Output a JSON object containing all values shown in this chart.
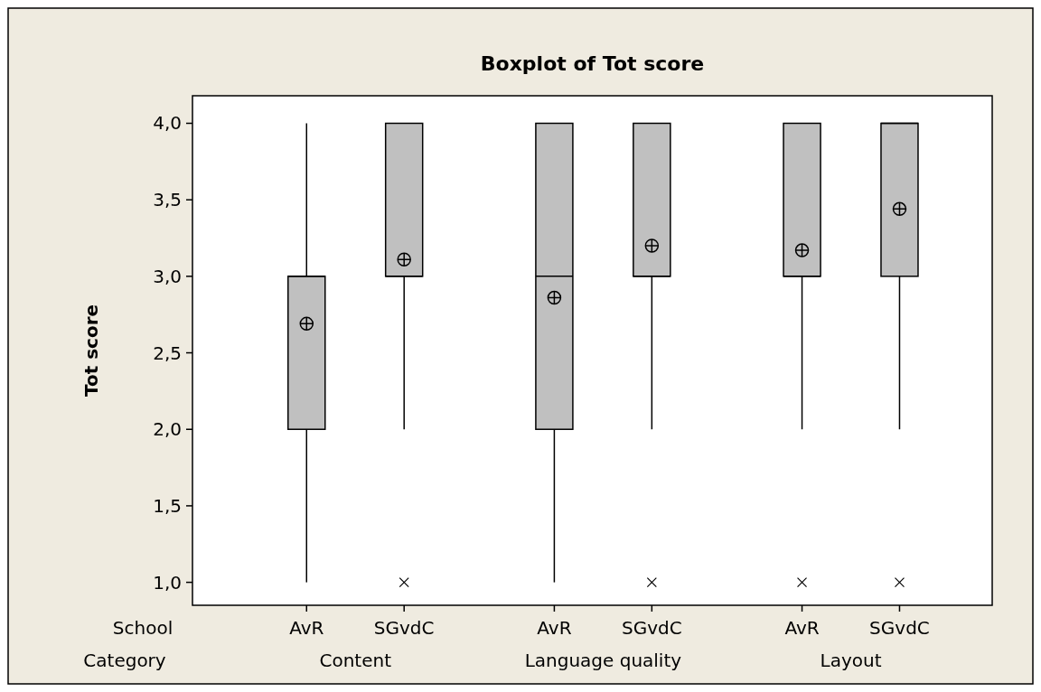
{
  "chart_data": {
    "type": "box",
    "title": "Boxplot of Tot score",
    "ylabel": "Tot score",
    "categories": [
      "AvR",
      "SGvdC",
      "AvR",
      "SGvdC",
      "AvR",
      "SGvdC"
    ],
    "annotations": [
      "School",
      "Category",
      "Content",
      "Language quality",
      "Layout"
    ],
    "boxes": [
      {
        "low": 1,
        "q1": 2,
        "median": 3,
        "q3": 3,
        "high": 4,
        "mean": 2.69
      },
      {
        "low": 2,
        "q1": 3,
        "median": 3,
        "q3": 4,
        "high": 4,
        "mean": 3.11,
        "outliers": [
          1
        ]
      },
      {
        "low": 1,
        "q1": 2,
        "median": 3,
        "q3": 4,
        "high": 4,
        "mean": 2.86
      },
      {
        "low": 2,
        "q1": 3,
        "median": 3,
        "q3": 4,
        "high": 4,
        "mean": 3.2,
        "outliers": [
          1
        ]
      },
      {
        "low": 2,
        "q1": 3,
        "median": 3,
        "q3": 4,
        "high": 4,
        "mean": 3.17,
        "outliers": [
          1
        ]
      },
      {
        "low": 2,
        "q1": 3,
        "median": 4,
        "q3": 4,
        "high": 4,
        "mean": 3.44,
        "outliers": [
          1
        ]
      }
    ],
    "color": "#c0c0c0",
    "ylim": [
      0.85,
      4.18
    ],
    "yticks": [
      {
        "value": 1,
        "label": "1,0"
      },
      {
        "value": 1.5,
        "label": "1,5"
      },
      {
        "value": 2,
        "label": "2,0"
      },
      {
        "value": 2.5,
        "label": "2,5"
      },
      {
        "value": 3,
        "label": "3,0"
      },
      {
        "value": 3.5,
        "label": "3,5"
      },
      {
        "value": 4,
        "label": "4,0"
      }
    ],
    "grid": false
  }
}
